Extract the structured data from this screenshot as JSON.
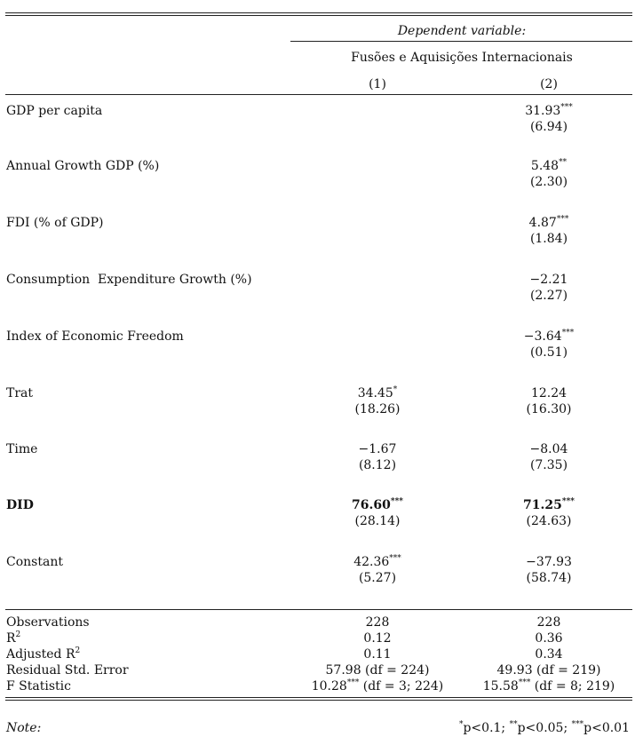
{
  "header": {
    "dependent_variable": "Dependent variable:",
    "dv_name": "Fusões e Aquisições Internacionais",
    "col1": "(1)",
    "col2": "(2)"
  },
  "rows": [
    {
      "label": "GDP per capita",
      "c1": "",
      "c1_se": "",
      "c2": "31.93",
      "c2_sig": "***",
      "c2_se": "(6.94)"
    },
    {
      "label": "Annual Growth GDP (%)",
      "c1": "",
      "c1_se": "",
      "c2": "5.48",
      "c2_sig": "**",
      "c2_se": "(2.30)"
    },
    {
      "label": "FDI (% of GDP)",
      "c1": "",
      "c1_se": "",
      "c2": "4.87",
      "c2_sig": "***",
      "c2_se": "(1.84)"
    },
    {
      "label": "Consumption  Expenditure Growth (%)",
      "c1": "",
      "c1_se": "",
      "c2": "−2.21",
      "c2_sig": "",
      "c2_se": "(2.27)"
    },
    {
      "label": "Index of Economic Freedom",
      "c1": "",
      "c1_se": "",
      "c2": "−3.64",
      "c2_sig": "***",
      "c2_se": "(0.51)"
    },
    {
      "label": "Trat",
      "c1": "34.45",
      "c1_sig": "*",
      "c1_se": "(18.26)",
      "c2": "12.24",
      "c2_sig": "",
      "c2_se": "(16.30)"
    },
    {
      "label": "Time",
      "c1": "−1.67",
      "c1_sig": "",
      "c1_se": "(8.12)",
      "c2": "−8.04",
      "c2_sig": "",
      "c2_se": "(7.35)"
    },
    {
      "label": "DID",
      "c1": "76.60",
      "c1_sig": "***",
      "c1_se": "(28.14)",
      "c2": "71.25",
      "c2_sig": "***",
      "c2_se": "(24.63)"
    },
    {
      "label": "Constant",
      "c1": "42.36",
      "c1_sig": "***",
      "c1_se": "(5.27)",
      "c2": "−37.93",
      "c2_sig": "",
      "c2_se": "(58.74)"
    }
  ],
  "stats": {
    "observations": {
      "label": "Observations",
      "c1": "228",
      "c2": "228"
    },
    "r2": {
      "label": "R",
      "sup": "2",
      "c1": "0.12",
      "c2": "0.36"
    },
    "adj_r2": {
      "label": "Adjusted R",
      "sup": "2",
      "c1": "0.11",
      "c2": "0.34"
    },
    "rse": {
      "label": "Residual Std. Error",
      "c1": "57.98 (df = 224)",
      "c2": "49.93 (df = 219)"
    },
    "fstat": {
      "label": "F Statistic",
      "c1_val": "10.28",
      "c1_sig": "***",
      "c1_df": " (df = 3; 224)",
      "c2_val": "15.58",
      "c2_sig": "***",
      "c2_df": " (df = 8; 219)"
    }
  },
  "note": {
    "label": "Note:",
    "s1": "*",
    "t1": "p<0.1; ",
    "s2": "**",
    "t2": "p<0.05; ",
    "s3": "***",
    "t3": "p<0.01"
  }
}
